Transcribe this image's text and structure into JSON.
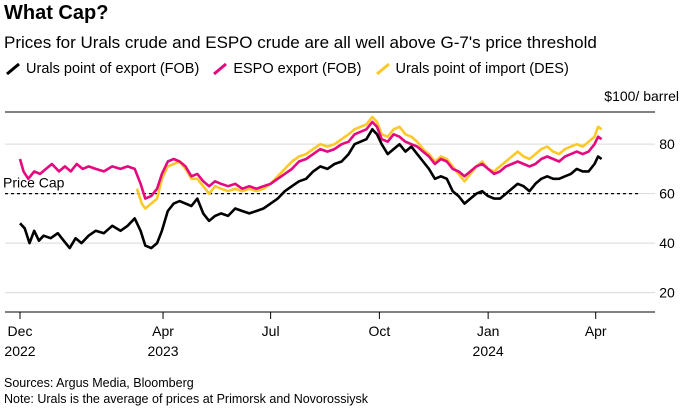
{
  "chart_data": {
    "type": "line",
    "title": "What Cap?",
    "subtitle": "Prices for Urals crude and ESPO crude are all well above G-7's price threshold",
    "ylabel": "$100/ barrel",
    "ylim": [
      15,
      93
    ],
    "yticks": [
      20,
      40,
      60,
      80
    ],
    "xlim": [
      "2022-12-01",
      "2024-04-30"
    ],
    "xticks": [
      {
        "date": "2022-12-01",
        "label": "Dec",
        "year": "2022"
      },
      {
        "date": "2023-04-01",
        "label": "Apr",
        "year": "2023"
      },
      {
        "date": "2023-07-01",
        "label": "Jul",
        "year": ""
      },
      {
        "date": "2023-10-01",
        "label": "Oct",
        "year": ""
      },
      {
        "date": "2024-01-01",
        "label": "Jan",
        "year": "2024"
      },
      {
        "date": "2024-04-01",
        "label": "Apr",
        "year": ""
      }
    ],
    "reference_line": {
      "value": 60,
      "label": "Price Cap",
      "style": "dashed"
    },
    "legend_position": "top",
    "series": [
      {
        "name": "Urals point of export (FOB)",
        "color": "#000000",
        "points": [
          [
            "2022-12-01",
            48
          ],
          [
            "2022-12-05",
            46
          ],
          [
            "2022-12-09",
            40
          ],
          [
            "2022-12-13",
            45
          ],
          [
            "2022-12-17",
            41
          ],
          [
            "2022-12-21",
            43
          ],
          [
            "2022-12-27",
            42
          ],
          [
            "2023-01-02",
            44
          ],
          [
            "2023-01-07",
            41
          ],
          [
            "2023-01-12",
            38
          ],
          [
            "2023-01-17",
            42
          ],
          [
            "2023-01-22",
            40
          ],
          [
            "2023-01-28",
            43
          ],
          [
            "2023-02-03",
            45
          ],
          [
            "2023-02-10",
            44
          ],
          [
            "2023-02-17",
            47
          ],
          [
            "2023-02-24",
            45
          ],
          [
            "2023-03-02",
            47
          ],
          [
            "2023-03-08",
            50
          ],
          [
            "2023-03-13",
            45
          ],
          [
            "2023-03-17",
            39
          ],
          [
            "2023-03-22",
            38
          ],
          [
            "2023-03-27",
            40
          ],
          [
            "2023-03-31",
            45
          ],
          [
            "2023-04-05",
            53
          ],
          [
            "2023-04-10",
            56
          ],
          [
            "2023-04-15",
            57
          ],
          [
            "2023-04-20",
            56
          ],
          [
            "2023-04-25",
            55
          ],
          [
            "2023-04-30",
            58
          ],
          [
            "2023-05-05",
            52
          ],
          [
            "2023-05-10",
            49
          ],
          [
            "2023-05-15",
            51
          ],
          [
            "2023-05-20",
            52
          ],
          [
            "2023-05-26",
            51
          ],
          [
            "2023-06-01",
            54
          ],
          [
            "2023-06-07",
            53
          ],
          [
            "2023-06-13",
            52
          ],
          [
            "2023-06-19",
            53
          ],
          [
            "2023-06-25",
            54
          ],
          [
            "2023-07-01",
            56
          ],
          [
            "2023-07-07",
            58
          ],
          [
            "2023-07-13",
            61
          ],
          [
            "2023-07-19",
            63
          ],
          [
            "2023-07-25",
            65
          ],
          [
            "2023-07-31",
            66
          ],
          [
            "2023-08-06",
            69
          ],
          [
            "2023-08-12",
            71
          ],
          [
            "2023-08-18",
            70
          ],
          [
            "2023-08-24",
            72
          ],
          [
            "2023-08-30",
            73
          ],
          [
            "2023-09-05",
            76
          ],
          [
            "2023-09-10",
            80
          ],
          [
            "2023-09-15",
            81
          ],
          [
            "2023-09-20",
            82
          ],
          [
            "2023-09-25",
            86
          ],
          [
            "2023-09-29",
            84
          ],
          [
            "2023-10-03",
            80
          ],
          [
            "2023-10-08",
            76
          ],
          [
            "2023-10-13",
            78
          ],
          [
            "2023-10-18",
            80
          ],
          [
            "2023-10-23",
            77
          ],
          [
            "2023-10-28",
            79
          ],
          [
            "2023-11-02",
            76
          ],
          [
            "2023-11-07",
            73
          ],
          [
            "2023-11-12",
            70
          ],
          [
            "2023-11-17",
            66
          ],
          [
            "2023-11-22",
            67
          ],
          [
            "2023-11-27",
            66
          ],
          [
            "2023-12-02",
            61
          ],
          [
            "2023-12-07",
            59
          ],
          [
            "2023-12-12",
            56
          ],
          [
            "2023-12-17",
            58
          ],
          [
            "2023-12-22",
            60
          ],
          [
            "2023-12-27",
            61
          ],
          [
            "2024-01-01",
            59
          ],
          [
            "2024-01-06",
            58
          ],
          [
            "2024-01-11",
            58
          ],
          [
            "2024-01-16",
            60
          ],
          [
            "2024-01-21",
            62
          ],
          [
            "2024-01-26",
            64
          ],
          [
            "2024-01-31",
            63
          ],
          [
            "2024-02-05",
            61
          ],
          [
            "2024-02-10",
            64
          ],
          [
            "2024-02-15",
            66
          ],
          [
            "2024-02-20",
            67
          ],
          [
            "2024-02-25",
            66
          ],
          [
            "2024-03-01",
            66
          ],
          [
            "2024-03-06",
            67
          ],
          [
            "2024-03-11",
            68
          ],
          [
            "2024-03-16",
            70
          ],
          [
            "2024-03-21",
            69
          ],
          [
            "2024-03-26",
            69
          ],
          [
            "2024-03-31",
            72
          ],
          [
            "2024-04-03",
            75
          ],
          [
            "2024-04-06",
            74
          ]
        ]
      },
      {
        "name": "ESPO export (FOB)",
        "color": "#e5097f",
        "points": [
          [
            "2022-12-01",
            74
          ],
          [
            "2022-12-04",
            69
          ],
          [
            "2022-12-08",
            66
          ],
          [
            "2022-12-13",
            69
          ],
          [
            "2022-12-18",
            68
          ],
          [
            "2022-12-23",
            70
          ],
          [
            "2022-12-28",
            72
          ],
          [
            "2023-01-03",
            69
          ],
          [
            "2023-01-08",
            71
          ],
          [
            "2023-01-13",
            69
          ],
          [
            "2023-01-18",
            72
          ],
          [
            "2023-01-23",
            70
          ],
          [
            "2023-01-28",
            71
          ],
          [
            "2023-02-03",
            70
          ],
          [
            "2023-02-10",
            69
          ],
          [
            "2023-02-17",
            71
          ],
          [
            "2023-02-24",
            70
          ],
          [
            "2023-03-02",
            71
          ],
          [
            "2023-03-08",
            70
          ],
          [
            "2023-03-13",
            64
          ],
          [
            "2023-03-17",
            58
          ],
          [
            "2023-03-22",
            59
          ],
          [
            "2023-03-27",
            62
          ],
          [
            "2023-03-31",
            68
          ],
          [
            "2023-04-05",
            73
          ],
          [
            "2023-04-10",
            74
          ],
          [
            "2023-04-15",
            73
          ],
          [
            "2023-04-20",
            71
          ],
          [
            "2023-04-25",
            67
          ],
          [
            "2023-04-30",
            68
          ],
          [
            "2023-05-05",
            65
          ],
          [
            "2023-05-10",
            63
          ],
          [
            "2023-05-15",
            65
          ],
          [
            "2023-05-20",
            64
          ],
          [
            "2023-05-26",
            63
          ],
          [
            "2023-06-01",
            64
          ],
          [
            "2023-06-07",
            62
          ],
          [
            "2023-06-13",
            63
          ],
          [
            "2023-06-19",
            62
          ],
          [
            "2023-06-25",
            63
          ],
          [
            "2023-07-01",
            64
          ],
          [
            "2023-07-07",
            66
          ],
          [
            "2023-07-13",
            68
          ],
          [
            "2023-07-19",
            70
          ],
          [
            "2023-07-25",
            73
          ],
          [
            "2023-07-31",
            74
          ],
          [
            "2023-08-06",
            76
          ],
          [
            "2023-08-12",
            78
          ],
          [
            "2023-08-18",
            77
          ],
          [
            "2023-08-24",
            78
          ],
          [
            "2023-08-30",
            80
          ],
          [
            "2023-09-05",
            81
          ],
          [
            "2023-09-10",
            84
          ],
          [
            "2023-09-15",
            85
          ],
          [
            "2023-09-20",
            86
          ],
          [
            "2023-09-25",
            89
          ],
          [
            "2023-09-29",
            87
          ],
          [
            "2023-10-03",
            82
          ],
          [
            "2023-10-08",
            81
          ],
          [
            "2023-10-13",
            84
          ],
          [
            "2023-10-18",
            83
          ],
          [
            "2023-10-23",
            81
          ],
          [
            "2023-10-28",
            80
          ],
          [
            "2023-11-02",
            79
          ],
          [
            "2023-11-07",
            77
          ],
          [
            "2023-11-12",
            75
          ],
          [
            "2023-11-17",
            72
          ],
          [
            "2023-11-22",
            74
          ],
          [
            "2023-11-27",
            73
          ],
          [
            "2023-12-02",
            70
          ],
          [
            "2023-12-07",
            69
          ],
          [
            "2023-12-12",
            67
          ],
          [
            "2023-12-17",
            69
          ],
          [
            "2023-12-22",
            71
          ],
          [
            "2023-12-27",
            72
          ],
          [
            "2024-01-01",
            70
          ],
          [
            "2024-01-06",
            68
          ],
          [
            "2024-01-11",
            69
          ],
          [
            "2024-01-16",
            71
          ],
          [
            "2024-01-21",
            72
          ],
          [
            "2024-01-26",
            73
          ],
          [
            "2024-01-31",
            72
          ],
          [
            "2024-02-05",
            71
          ],
          [
            "2024-02-10",
            72
          ],
          [
            "2024-02-15",
            74
          ],
          [
            "2024-02-20",
            75
          ],
          [
            "2024-02-25",
            74
          ],
          [
            "2024-03-01",
            73
          ],
          [
            "2024-03-06",
            75
          ],
          [
            "2024-03-11",
            76
          ],
          [
            "2024-03-16",
            77
          ],
          [
            "2024-03-21",
            76
          ],
          [
            "2024-03-26",
            77
          ],
          [
            "2024-03-31",
            80
          ],
          [
            "2024-04-03",
            83
          ],
          [
            "2024-04-06",
            82
          ]
        ]
      },
      {
        "name": "Urals point of import (DES)",
        "color": "#fcc92a",
        "points": [
          [
            "2023-03-10",
            62
          ],
          [
            "2023-03-14",
            56
          ],
          [
            "2023-03-17",
            54
          ],
          [
            "2023-03-22",
            56
          ],
          [
            "2023-03-27",
            58
          ],
          [
            "2023-03-31",
            66
          ],
          [
            "2023-04-05",
            71
          ],
          [
            "2023-04-10",
            72
          ],
          [
            "2023-04-15",
            73
          ],
          [
            "2023-04-20",
            70
          ],
          [
            "2023-04-25",
            66
          ],
          [
            "2023-04-30",
            66
          ],
          [
            "2023-05-05",
            63
          ],
          [
            "2023-05-10",
            60
          ],
          [
            "2023-05-15",
            63
          ],
          [
            "2023-05-20",
            62
          ],
          [
            "2023-05-26",
            61
          ],
          [
            "2023-06-01",
            62
          ],
          [
            "2023-06-07",
            61
          ],
          [
            "2023-06-13",
            62
          ],
          [
            "2023-06-19",
            61
          ],
          [
            "2023-06-25",
            62
          ],
          [
            "2023-07-01",
            64
          ],
          [
            "2023-07-07",
            67
          ],
          [
            "2023-07-13",
            70
          ],
          [
            "2023-07-19",
            73
          ],
          [
            "2023-07-25",
            75
          ],
          [
            "2023-07-31",
            76
          ],
          [
            "2023-08-06",
            78
          ],
          [
            "2023-08-12",
            80
          ],
          [
            "2023-08-18",
            79
          ],
          [
            "2023-08-24",
            80
          ],
          [
            "2023-08-30",
            82
          ],
          [
            "2023-09-05",
            84
          ],
          [
            "2023-09-10",
            86
          ],
          [
            "2023-09-15",
            87
          ],
          [
            "2023-09-20",
            88
          ],
          [
            "2023-09-25",
            91
          ],
          [
            "2023-09-29",
            89
          ],
          [
            "2023-10-03",
            84
          ],
          [
            "2023-10-08",
            83
          ],
          [
            "2023-10-13",
            86
          ],
          [
            "2023-10-18",
            87
          ],
          [
            "2023-10-23",
            84
          ],
          [
            "2023-10-28",
            83
          ],
          [
            "2023-11-02",
            81
          ],
          [
            "2023-11-07",
            78
          ],
          [
            "2023-11-12",
            76
          ],
          [
            "2023-11-17",
            73
          ],
          [
            "2023-11-22",
            75
          ],
          [
            "2023-11-27",
            74
          ],
          [
            "2023-12-02",
            71
          ],
          [
            "2023-12-07",
            68
          ],
          [
            "2023-12-12",
            65
          ],
          [
            "2023-12-17",
            68
          ],
          [
            "2023-12-22",
            71
          ],
          [
            "2023-12-27",
            73
          ],
          [
            "2024-01-01",
            70
          ],
          [
            "2024-01-06",
            69
          ],
          [
            "2024-01-11",
            71
          ],
          [
            "2024-01-16",
            73
          ],
          [
            "2024-01-21",
            75
          ],
          [
            "2024-01-26",
            77
          ],
          [
            "2024-01-31",
            75
          ],
          [
            "2024-02-05",
            74
          ],
          [
            "2024-02-10",
            76
          ],
          [
            "2024-02-15",
            78
          ],
          [
            "2024-02-20",
            79
          ],
          [
            "2024-02-25",
            77
          ],
          [
            "2024-03-01",
            76
          ],
          [
            "2024-03-06",
            78
          ],
          [
            "2024-03-11",
            79
          ],
          [
            "2024-03-16",
            80
          ],
          [
            "2024-03-21",
            79
          ],
          [
            "2024-03-26",
            81
          ],
          [
            "2024-03-31",
            83
          ],
          [
            "2024-04-03",
            87
          ],
          [
            "2024-04-06",
            86
          ]
        ]
      }
    ]
  },
  "footer": {
    "source": "Sources: Argus Media, Bloomberg",
    "note": "Note: Urals is the average of prices at Primorsk and Novorossiysk"
  }
}
